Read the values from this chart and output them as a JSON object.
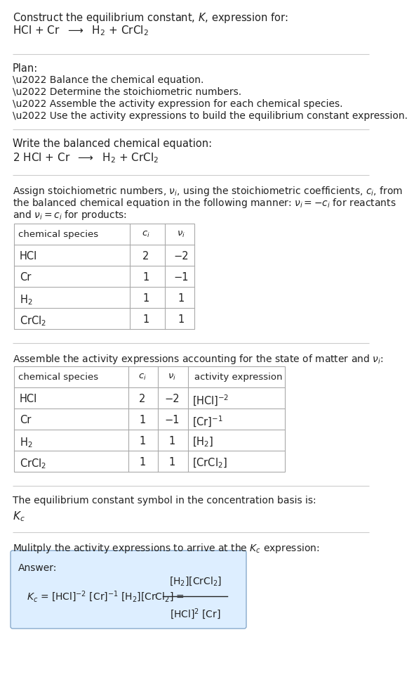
{
  "bg_color": "#ffffff",
  "text_color": "#222222",
  "sep_color": "#cccccc",
  "table_color": "#aaaaaa",
  "answer_bg": "#ddeeff",
  "answer_border": "#88aacc",
  "title_line1": "Construct the equilibrium constant, $K$, expression for:",
  "title_line2": "HCl + Cr  $\\longrightarrow$  H$_2$ + CrCl$_2$",
  "plan_header": "Plan:",
  "plan_items": [
    "\\u2022 Balance the chemical equation.",
    "\\u2022 Determine the stoichiometric numbers.",
    "\\u2022 Assemble the activity expression for each chemical species.",
    "\\u2022 Use the activity expressions to build the equilibrium constant expression."
  ],
  "balanced_header": "Write the balanced chemical equation:",
  "balanced_eq": "2 HCl + Cr  $\\longrightarrow$  H$_2$ + CrCl$_2$",
  "stoich_lines": [
    "Assign stoichiometric numbers, $\\nu_i$, using the stoichiometric coefficients, $c_i$, from",
    "the balanced chemical equation in the following manner: $\\nu_i = -c_i$ for reactants",
    "and $\\nu_i = c_i$ for products:"
  ],
  "table1_headers": [
    "chemical species",
    "$c_i$",
    "$\\nu_i$"
  ],
  "table1_rows": [
    [
      "HCl",
      "2",
      "−2"
    ],
    [
      "Cr",
      "1",
      "−1"
    ],
    [
      "H$_2$",
      "1",
      "1"
    ],
    [
      "CrCl$_2$",
      "1",
      "1"
    ]
  ],
  "activity_header": "Assemble the activity expressions accounting for the state of matter and $\\nu_i$:",
  "table2_headers": [
    "chemical species",
    "$c_i$",
    "$\\nu_i$",
    "activity expression"
  ],
  "table2_rows": [
    [
      "HCl",
      "2",
      "−2",
      "[HCl]$^{-2}$"
    ],
    [
      "Cr",
      "1",
      "−1",
      "[Cr]$^{-1}$"
    ],
    [
      "H$_2$",
      "1",
      "1",
      "[H$_2$]"
    ],
    [
      "CrCl$_2$",
      "1",
      "1",
      "[CrCl$_2$]"
    ]
  ],
  "kc_header": "The equilibrium constant symbol in the concentration basis is:",
  "kc_symbol": "$K_c$",
  "multiply_header": "Mulitply the activity expressions to arrive at the $K_c$ expression:",
  "answer_label": "Answer:",
  "kc_expr": "$K_c$ = [HCl]$^{-2}$ [Cr]$^{-1}$ [H$_2$][CrCl$_2$]",
  "kc_frac_num": "[H$_2$][CrCl$_2$]",
  "kc_frac_den": "[HCl]$^2$ [Cr]"
}
